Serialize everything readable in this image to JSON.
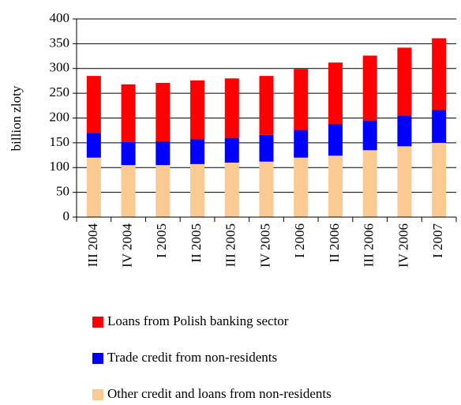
{
  "chart_data": {
    "type": "stacked_bar",
    "y_label": "billion zloty",
    "categories": [
      "III 2004",
      "IV 2004",
      "I 2005",
      "II 2005",
      "III 2005",
      "IV 2005",
      "I 2006",
      "II 2006",
      "III 2006",
      "IV 2006",
      "I 2007"
    ],
    "series": [
      {
        "name": "Loans from Polish banking sector",
        "color": "#ff0000",
        "values": [
          115,
          116,
          118,
          119,
          120,
          119,
          123,
          124,
          131,
          137,
          145
        ]
      },
      {
        "name": "Trade credit from non-residents",
        "color": "#0000ff",
        "values": [
          50,
          47,
          48,
          50,
          50,
          54,
          56,
          64,
          60,
          62,
          66
        ]
      },
      {
        "name": "Other credit and loans from non-residents",
        "color": "#fbc992",
        "values": [
          120,
          105,
          105,
          107,
          110,
          112,
          120,
          124,
          135,
          143,
          150
        ]
      }
    ],
    "ylim": [
      0,
      400
    ],
    "yticks": [
      0,
      50,
      100,
      150,
      200,
      250,
      300,
      350,
      400
    ],
    "grid": true
  }
}
